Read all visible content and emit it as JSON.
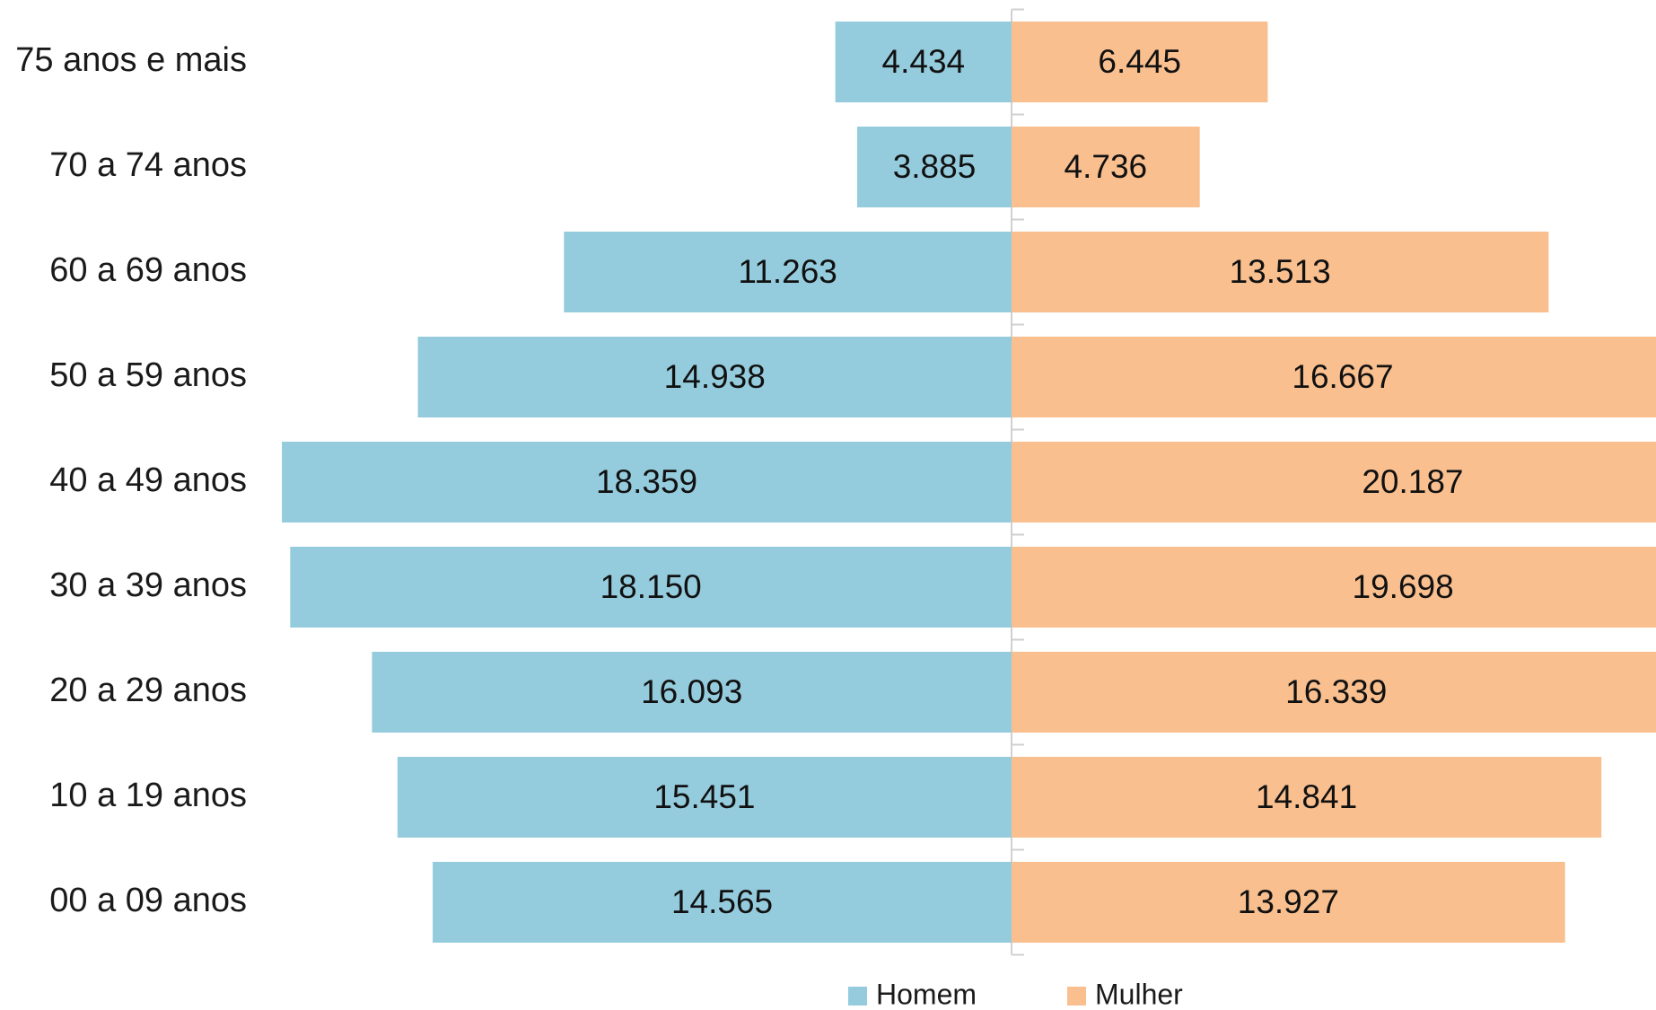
{
  "chart_data": {
    "type": "bar",
    "orientation": "horizontal-diverging",
    "title": "",
    "xlabel": "",
    "ylabel": "",
    "categories": [
      "75 anos e mais",
      "70 a 74 anos",
      "60 a 69 anos",
      "50 a 59 anos",
      "40 a 49 anos",
      "30 a 39 anos",
      "20 a 29 anos",
      "10 a 19 anos",
      "00 a 09 anos"
    ],
    "series": [
      {
        "name": "Homem",
        "color": "#95CCDD",
        "side": "left",
        "values": [
          4434,
          3885,
          11263,
          14938,
          18359,
          18150,
          16093,
          15451,
          14565
        ],
        "labels": [
          "4.434",
          "3.885",
          "11.263",
          "14.938",
          "18.359",
          "18.150",
          "16.093",
          "15.451",
          "14.565"
        ]
      },
      {
        "name": "Mulher",
        "color": "#F9BF8F",
        "side": "right",
        "values": [
          6445,
          4736,
          13513,
          16667,
          20187,
          19698,
          16339,
          14841,
          13927
        ],
        "labels": [
          "6.445",
          "4.736",
          "13.513",
          "16.667",
          "20.187",
          "19.698",
          "16.339",
          "14.841",
          "13.927"
        ]
      }
    ],
    "grid": false,
    "legend": "bottom-center"
  }
}
